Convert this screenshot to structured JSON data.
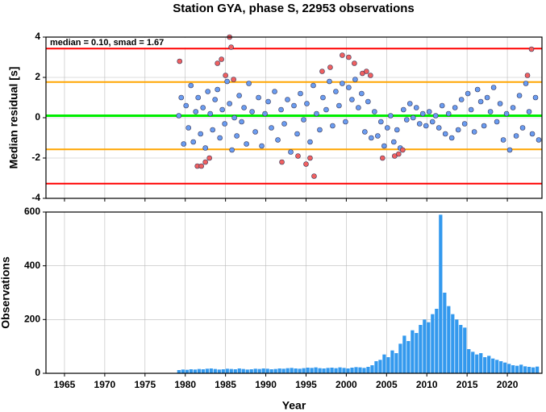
{
  "chart_data": [
    {
      "type": "scatter",
      "title": "Station GYA, phase S, 22953 observations",
      "annotation": "median = 0.10, smad = 1.67",
      "ylabel": "Median residual [s]",
      "xlim": [
        1962.7,
        2024.3
      ],
      "xticks": [
        1965,
        1970,
        1975,
        1980,
        1985,
        1990,
        1995,
        2000,
        2005,
        2010,
        2015,
        2020
      ],
      "ylim": [
        -4,
        4
      ],
      "yticks": [
        -4,
        -2,
        0,
        2,
        4
      ],
      "grid": true,
      "reference_lines": [
        {
          "value": 3.43,
          "color": "#ff0000"
        },
        {
          "value": 1.77,
          "color": "#ffa500"
        },
        {
          "value": 0.1,
          "color": "#00ee00"
        },
        {
          "value": -1.57,
          "color": "#ffa500"
        },
        {
          "value": -3.27,
          "color": "#ff0000"
        }
      ],
      "series": [
        {
          "color": "#6a9cf0",
          "x": [
            1979.2,
            1979.5,
            1979.8,
            1980.1,
            1980.4,
            1980.7,
            1981.0,
            1981.3,
            1981.6,
            1981.9,
            1982.2,
            1982.5,
            1982.8,
            1983.1,
            1983.4,
            1983.7,
            1984.0,
            1984.3,
            1984.6,
            1984.9,
            1985.2,
            1985.5,
            1985.8,
            1986.1,
            1986.4,
            1986.7,
            1987.0,
            1987.3,
            1987.6,
            1987.9,
            1988.3,
            1988.7,
            1989.1,
            1989.5,
            1989.9,
            1990.3,
            1990.7,
            1991.1,
            1991.5,
            1991.9,
            1992.3,
            1992.7,
            1993.1,
            1993.5,
            1993.9,
            1994.3,
            1994.7,
            1995.1,
            1995.5,
            1995.9,
            1996.3,
            1996.7,
            1997.1,
            1997.5,
            1997.9,
            1998.3,
            1998.7,
            1999.1,
            1999.5,
            1999.9,
            2000.3,
            2000.7,
            2001.1,
            2001.5,
            2001.9,
            2002.3,
            2002.7,
            2003.1,
            2003.5,
            2003.9,
            2004.3,
            2004.7,
            2005.1,
            2005.5,
            2005.9,
            2006.3,
            2006.7,
            2007.1,
            2007.5,
            2007.9,
            2008.3,
            2008.7,
            2009.1,
            2009.5,
            2009.9,
            2010.3,
            2010.7,
            2011.1,
            2011.5,
            2011.9,
            2012.3,
            2012.7,
            2013.1,
            2013.5,
            2013.9,
            2014.3,
            2014.7,
            2015.1,
            2015.5,
            2015.9,
            2016.3,
            2016.7,
            2017.1,
            2017.5,
            2017.9,
            2018.3,
            2018.7,
            2019.1,
            2019.5,
            2019.9,
            2020.3,
            2020.7,
            2021.1,
            2021.5,
            2021.9,
            2022.3,
            2022.7,
            2023.1,
            2023.5,
            2023.9
          ],
          "values": [
            0.1,
            1.0,
            -1.3,
            0.6,
            -0.5,
            1.6,
            -1.2,
            0.3,
            1.0,
            -0.8,
            0.5,
            -1.5,
            1.3,
            0.2,
            -0.6,
            0.9,
            1.4,
            -1.0,
            0.4,
            -0.3,
            1.8,
            0.7,
            -1.6,
            0.0,
            -0.9,
            1.1,
            -0.2,
            0.5,
            -1.3,
            1.7,
            0.3,
            -0.7,
            1.0,
            -1.4,
            0.2,
            0.8,
            -0.5,
            1.3,
            -1.1,
            0.4,
            -0.3,
            0.9,
            -1.7,
            0.6,
            -0.8,
            1.2,
            -0.1,
            0.7,
            -1.2,
            1.6,
            0.2,
            -0.6,
            1.0,
            0.4,
            1.8,
            -0.4,
            1.3,
            0.6,
            1.7,
            -0.2,
            1.5,
            0.9,
            1.9,
            0.5,
            1.2,
            -0.7,
            0.8,
            -1.0,
            0.3,
            -0.9,
            -0.2,
            -1.4,
            -0.5,
            0.1,
            -1.2,
            -0.6,
            -1.5,
            0.4,
            -0.1,
            0.7,
            0.0,
            0.5,
            -0.3,
            0.2,
            -0.4,
            0.3,
            -0.2,
            0.1,
            -0.5,
            0.6,
            -0.8,
            0.2,
            -1.0,
            0.5,
            -0.6,
            0.9,
            -0.3,
            1.2,
            0.4,
            -0.7,
            1.4,
            0.8,
            -0.4,
            1.0,
            0.3,
            1.5,
            -0.2,
            0.7,
            -1.1,
            0.2,
            -1.6,
            0.5,
            -0.9,
            1.1,
            -0.5,
            1.7,
            0.3,
            -0.8,
            1.0,
            -1.1
          ]
        },
        {
          "color": "#f06060",
          "x": [
            1979.3,
            1981.5,
            1982.0,
            1982.5,
            1983.0,
            1984.0,
            1984.5,
            1985.0,
            1985.5,
            1985.7,
            1986.0,
            1992.0,
            1994.0,
            1995.0,
            1995.5,
            1996.0,
            1997.0,
            1998.0,
            1999.5,
            2000.3,
            2001.0,
            2002.0,
            2002.5,
            2003.0,
            2004.5,
            2006.0,
            2006.5,
            2007.0,
            2022.5,
            2023.0
          ],
          "values": [
            2.8,
            -2.4,
            -2.4,
            -2.2,
            -2.0,
            2.7,
            2.9,
            2.1,
            4.0,
            3.5,
            1.9,
            -2.2,
            -1.9,
            -2.3,
            -2.0,
            -2.9,
            2.3,
            2.5,
            3.1,
            3.0,
            2.7,
            2.2,
            2.3,
            2.1,
            -2.0,
            -1.9,
            -1.8,
            -1.6,
            2.1,
            3.4
          ]
        }
      ]
    },
    {
      "type": "bar",
      "xlabel": "Year",
      "ylabel": "Observations",
      "color": "#3399ee",
      "xlim": [
        1962.7,
        2024.3
      ],
      "xticks": [
        1965,
        1970,
        1975,
        1980,
        1985,
        1990,
        1995,
        2000,
        2005,
        2010,
        2015,
        2020
      ],
      "ylim": [
        0,
        600
      ],
      "yticks": [
        0,
        200,
        400,
        600
      ],
      "grid": true,
      "x": [
        1979.0,
        1979.5,
        1980.0,
        1980.5,
        1981.0,
        1981.5,
        1982.0,
        1982.5,
        1983.0,
        1983.5,
        1984.0,
        1984.5,
        1985.0,
        1985.5,
        1986.0,
        1986.5,
        1987.0,
        1987.5,
        1988.0,
        1988.5,
        1989.0,
        1989.5,
        1990.0,
        1990.5,
        1991.0,
        1991.5,
        1992.0,
        1992.5,
        1993.0,
        1993.5,
        1994.0,
        1994.5,
        1995.0,
        1995.5,
        1996.0,
        1996.5,
        1997.0,
        1997.5,
        1998.0,
        1998.5,
        1999.0,
        1999.5,
        2000.0,
        2000.5,
        2001.0,
        2001.5,
        2002.0,
        2002.5,
        2003.0,
        2003.5,
        2004.0,
        2004.5,
        2005.0,
        2005.5,
        2006.0,
        2006.5,
        2007.0,
        2007.5,
        2008.0,
        2008.5,
        2009.0,
        2009.5,
        2010.0,
        2010.5,
        2011.0,
        2011.5,
        2012.0,
        2012.5,
        2013.0,
        2013.5,
        2014.0,
        2014.5,
        2015.0,
        2015.5,
        2016.0,
        2016.5,
        2017.0,
        2017.5,
        2018.0,
        2018.5,
        2019.0,
        2019.5,
        2020.0,
        2020.5,
        2021.0,
        2021.5,
        2022.0,
        2022.5,
        2023.0,
        2023.5
      ],
      "values": [
        12,
        14,
        13,
        15,
        14,
        16,
        15,
        17,
        18,
        16,
        14,
        15,
        17,
        16,
        15,
        18,
        16,
        14,
        15,
        17,
        16,
        18,
        17,
        15,
        16,
        18,
        17,
        19,
        20,
        18,
        17,
        19,
        21,
        20,
        22,
        19,
        18,
        20,
        21,
        19,
        22,
        20,
        18,
        21,
        23,
        22,
        20,
        24,
        30,
        45,
        50,
        70,
        60,
        85,
        75,
        110,
        140,
        120,
        160,
        150,
        180,
        200,
        190,
        220,
        240,
        590,
        300,
        250,
        220,
        200,
        180,
        170,
        90,
        80,
        70,
        75,
        60,
        65,
        55,
        50,
        45,
        40,
        35,
        30,
        28,
        32,
        26,
        24,
        22,
        25
      ]
    }
  ]
}
